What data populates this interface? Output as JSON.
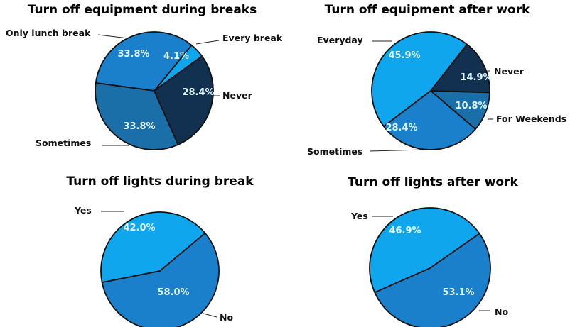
{
  "colors": {
    "light": "#0fa6ee",
    "medium": "#1a80cc",
    "steel": "#1b6fa8",
    "dark": "#12304f",
    "outline": "#111111",
    "pct_text": "#dff6ff"
  },
  "chart_data": [
    {
      "type": "pie",
      "title": "Turn off equipment during breaks",
      "slices": [
        {
          "label": "Every break",
          "value": 4.1,
          "pct_text": "4.1%",
          "color": "#0fa6ee"
        },
        {
          "label": "Only lunch break",
          "value": 33.8,
          "pct_text": "33.8%",
          "color": "#1a80cc"
        },
        {
          "label": "Sometimes",
          "value": 33.8,
          "pct_text": "33.8%",
          "color": "#1b6fa8"
        },
        {
          "label": "Never",
          "value": 28.4,
          "pct_text": "28.4%",
          "color": "#12304f"
        }
      ]
    },
    {
      "type": "pie",
      "title": "Turn off equipment after work",
      "slices": [
        {
          "label": "Everyday",
          "value": 45.9,
          "pct_text": "45.9%",
          "color": "#0fa6ee"
        },
        {
          "label": "Sometimes",
          "value": 28.4,
          "pct_text": "28.4%",
          "color": "#1a80cc"
        },
        {
          "label": "For Weekends",
          "value": 10.8,
          "pct_text": "10.8%",
          "color": "#1b6fa8"
        },
        {
          "label": "Never",
          "value": 14.9,
          "pct_text": "14.9%",
          "color": "#12304f"
        }
      ]
    },
    {
      "type": "pie",
      "title": "Turn off lights during break",
      "slices": [
        {
          "label": "Yes",
          "value": 42.0,
          "pct_text": "42.0%",
          "color": "#0fa6ee"
        },
        {
          "label": "No",
          "value": 58.0,
          "pct_text": "58.0%",
          "color": "#1a80cc"
        }
      ]
    },
    {
      "type": "pie",
      "title": "Turn off lights after work",
      "slices": [
        {
          "label": "Yes",
          "value": 46.9,
          "pct_text": "46.9%",
          "color": "#0fa6ee"
        },
        {
          "label": "No",
          "value": 53.1,
          "pct_text": "53.1%",
          "color": "#1a80cc"
        }
      ]
    }
  ]
}
